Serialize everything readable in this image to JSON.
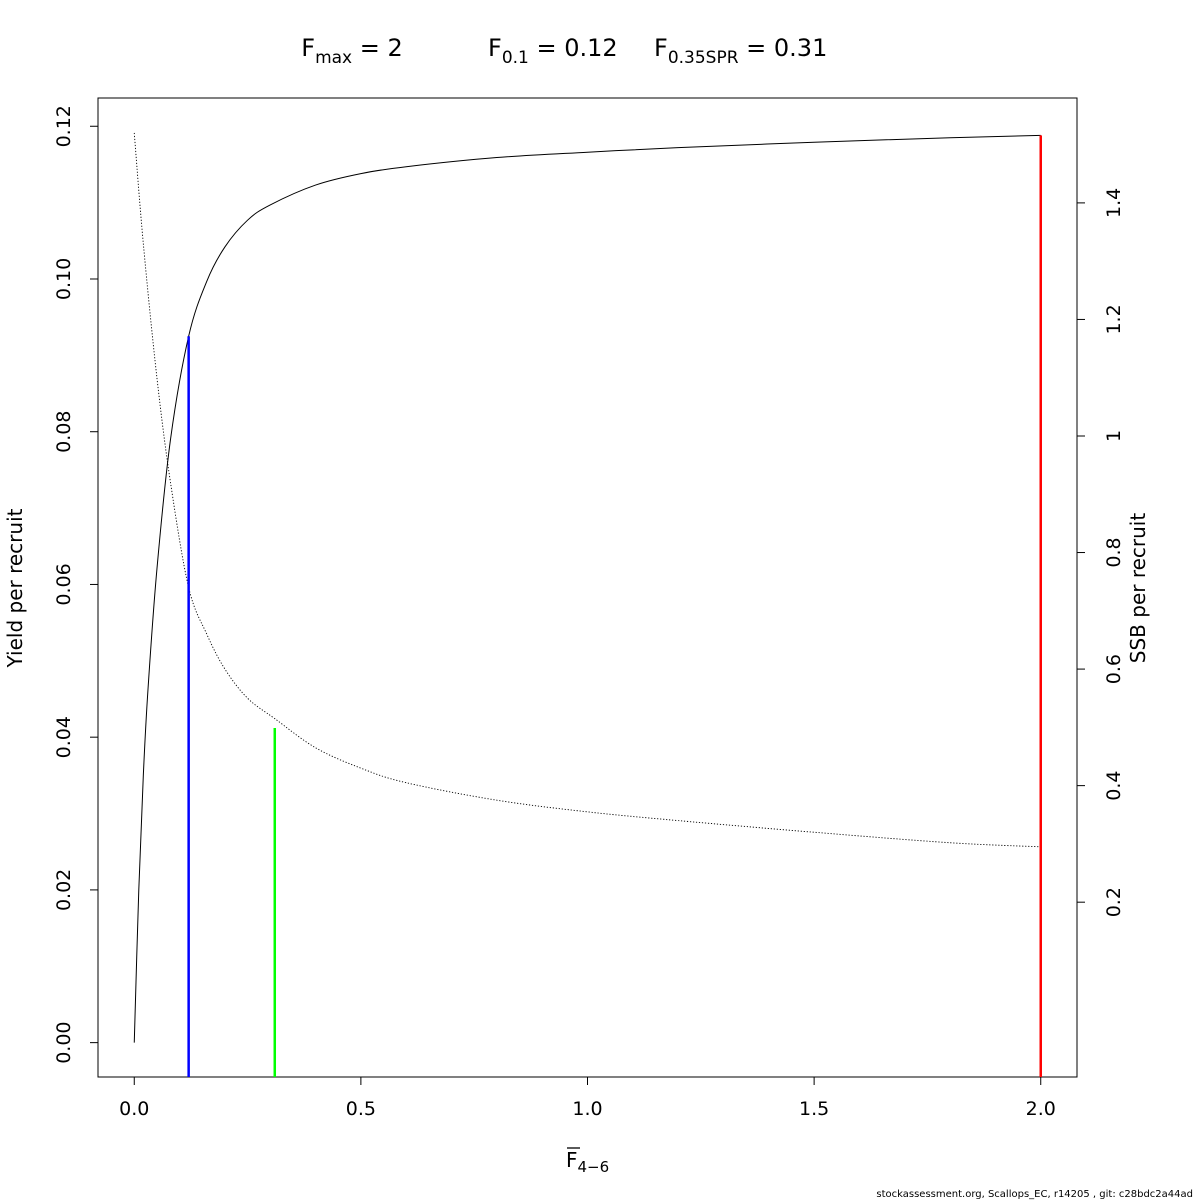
{
  "title": {
    "fmax": {
      "base": "F",
      "sub": "max",
      "value": " = 2"
    },
    "f01": {
      "base": "F",
      "sub": "0.1",
      "value": " = 0.12"
    },
    "fspr": {
      "base": "F",
      "sub": "0.35SPR",
      "value": " = 0.31"
    }
  },
  "footer": "stockassessment.org, Scallops_EC, r14205 , git: c28bdc2a44ad",
  "chart_data": {
    "type": "line",
    "xlabel": {
      "base": "F",
      "sub": "4−6"
    },
    "ylabel_left": "Yield per recruit",
    "ylabel_right": "SSB per recruit",
    "xlim": [
      -0.08,
      2.08
    ],
    "ylim_left": [
      -0.0045,
      0.1237
    ],
    "ylim_right": [
      -0.1,
      1.58
    ],
    "x_ticks": [
      0,
      0.5,
      1,
      1.5,
      2
    ],
    "x_tick_labels": [
      "0.0",
      "0.5",
      "1.0",
      "1.5",
      "2.0"
    ],
    "y_left_ticks": [
      0,
      0.02,
      0.04,
      0.06,
      0.08,
      0.1,
      0.12
    ],
    "y_left_tick_labels": [
      "0.00",
      "0.02",
      "0.04",
      "0.06",
      "0.08",
      "0.10",
      "0.12"
    ],
    "y_right_ticks": [
      0.2,
      0.4,
      0.6,
      0.8,
      1,
      1.2,
      1.4
    ],
    "y_right_tick_labels": [
      "0.2",
      "0.4",
      "0.6",
      "0.8",
      "1",
      "1.2",
      "1.4"
    ],
    "grid": false,
    "series": [
      {
        "name": "Yield per recruit",
        "axis": "left",
        "style": "solid",
        "color": "#000000",
        "x": [
          0,
          0.01,
          0.02,
          0.03,
          0.05,
          0.08,
          0.12,
          0.16,
          0.2,
          0.25,
          0.3,
          0.4,
          0.5,
          0.6,
          0.8,
          1.0,
          1.2,
          1.5,
          1.8,
          2.0
        ],
        "y": [
          0,
          0.02,
          0.035,
          0.046,
          0.062,
          0.079,
          0.0925,
          0.0997,
          0.1042,
          0.1077,
          0.1097,
          0.1123,
          0.1138,
          0.1147,
          0.1159,
          0.1166,
          0.1172,
          0.1179,
          0.1185,
          0.1188
        ]
      },
      {
        "name": "SSB per recruit",
        "axis": "right",
        "style": "dotted",
        "color": "#000000",
        "x": [
          0,
          0.02,
          0.05,
          0.08,
          0.12,
          0.16,
          0.2,
          0.25,
          0.31,
          0.4,
          0.5,
          0.6,
          0.8,
          1.0,
          1.2,
          1.5,
          1.8,
          2.0
        ],
        "y": [
          1.52,
          1.33,
          1.1,
          0.92,
          0.74,
          0.66,
          0.6,
          0.55,
          0.515,
          0.465,
          0.43,
          0.405,
          0.375,
          0.355,
          0.34,
          0.32,
          0.302,
          0.295
        ]
      }
    ],
    "reference_lines": [
      {
        "name": "F0.1",
        "x": 0.12,
        "yield": 0.0925,
        "color": "#0000ff"
      },
      {
        "name": "F0.35SPR",
        "x": 0.31,
        "yield": 0.0412,
        "color": "#00ff00"
      },
      {
        "name": "Fmax",
        "x": 2.0,
        "yield": 0.1188,
        "color": "#ff0000"
      }
    ]
  }
}
